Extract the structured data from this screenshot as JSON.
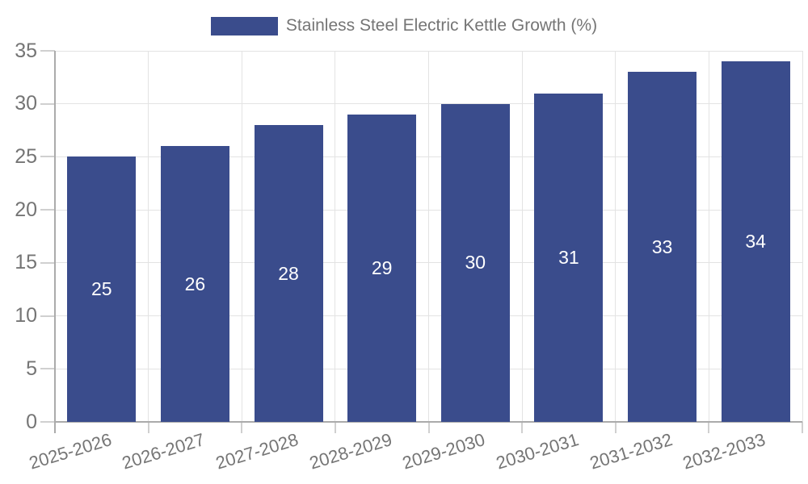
{
  "page": {
    "background_color": "#ffffff"
  },
  "legend": {
    "label": "Stainless Steel Electric Kettle Growth (%)",
    "swatch_color": "#3a4c8c",
    "text_color": "#757575",
    "position": "top-center"
  },
  "chart_data": {
    "type": "bar",
    "title": "Stainless Steel Electric Kettle Growth (%)",
    "categories": [
      "2025-2026",
      "2026-2027",
      "2027-2028",
      "2028-2029",
      "2029-2030",
      "2030-2031",
      "2031-2032",
      "2032-2033"
    ],
    "values": [
      25,
      26,
      28,
      29,
      30,
      31,
      33,
      34
    ],
    "xlabel": "",
    "ylabel": "",
    "ylim": [
      0,
      35
    ],
    "yticks": [
      0,
      5,
      10,
      15,
      20,
      25,
      30,
      35
    ],
    "grid": true,
    "legend_position": "top-center",
    "bar_color": "#3a4c8c",
    "bar_value_label_color": "#ffffff",
    "tick_label_color": "#757575",
    "grid_color": "#e3e3e3",
    "axis_color": "#ababab",
    "tick_mark_color": "#d0d0d0",
    "x_label_rotation_deg": -17
  }
}
